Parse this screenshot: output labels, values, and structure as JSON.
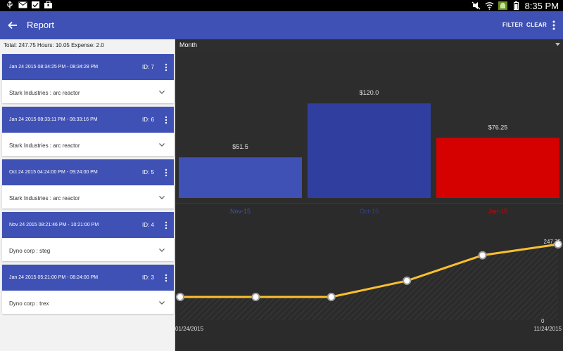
{
  "status_bar": {
    "time": "8:35 PM"
  },
  "app_bar": {
    "title": "Report",
    "filter_label": "FILTER",
    "clear_label": "CLEAR"
  },
  "summary": "Total:  247.75 Hours:  10.05 Expense:  2.0",
  "cards": [
    {
      "date": "Jan 24 2015 08:34:25 PM - 08:34:28 PM",
      "id": "ID: 7",
      "subtitle": "Stark Industries : arc reactor"
    },
    {
      "date": "Jan 24 2015 08:33:11 PM - 08:33:16 PM",
      "id": "ID: 6",
      "subtitle": "Stark Industries : arc reactor"
    },
    {
      "date": "Oct 24 2015 04:24:00 PM - 09:24:00 PM",
      "id": "ID: 5",
      "subtitle": "Stark Industries : arc reactor"
    },
    {
      "date": "Nov 24 2015 08:21:46 PM - 10:21:00 PM",
      "id": "ID: 4",
      "subtitle": "Dyno corp : steg"
    },
    {
      "date": "Jan 24 2015 05:21:00 PM - 08:24:00 PM",
      "id": "ID: 3",
      "subtitle": "Dyno corp : trex"
    }
  ],
  "dropdown": {
    "selected": "Month"
  },
  "chart_data": [
    {
      "type": "bar",
      "categories": [
        "Nov-15",
        "Oct-15",
        "Jan-15"
      ],
      "values": [
        51.5,
        120.0,
        76.25
      ],
      "value_labels": [
        "$51.5",
        "$120.0",
        "$76.25"
      ],
      "colors": [
        "#3f51b5",
        "#303f9f",
        "#d50000"
      ],
      "ylim": [
        0,
        130
      ]
    },
    {
      "type": "line",
      "x_labels": [
        "01/24/2015",
        "11/24/2015"
      ],
      "values": [
        0,
        0,
        0,
        76.25,
        196.25,
        247.75
      ],
      "value_labels": {
        "last": "247.75",
        "baseline": "0"
      },
      "color": "#fbc02d",
      "ylim": [
        0,
        400
      ]
    }
  ],
  "colors": {
    "primary": "#3f51b5",
    "dark_primary": "#303f9f",
    "accent": "#d50000",
    "line": "#fbc02d"
  }
}
